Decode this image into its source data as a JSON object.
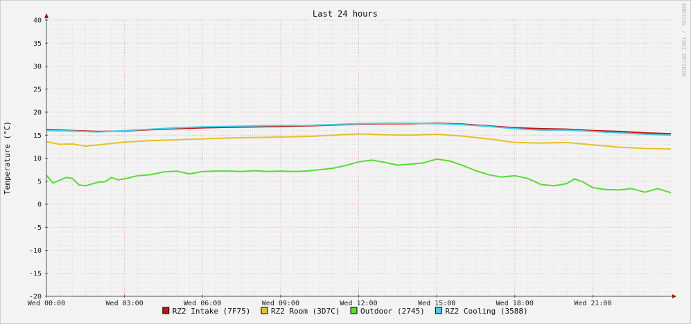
{
  "chart_data": {
    "type": "line",
    "title": "Last 24 hours",
    "ylabel": "Temperature (°C)",
    "watermark": "RRDTOOL / TOBI OETIKER",
    "ylim": [
      -20,
      40
    ],
    "yticks": [
      40,
      35,
      30,
      25,
      20,
      15,
      10,
      5,
      0,
      -5,
      -10,
      -15,
      -20
    ],
    "xlim": [
      0,
      24
    ],
    "xticks": [
      {
        "hour": 0,
        "label": "Wed 00:00"
      },
      {
        "hour": 3,
        "label": "Wed 03:00"
      },
      {
        "hour": 6,
        "label": "Wed 06:00"
      },
      {
        "hour": 9,
        "label": "Wed 09:00"
      },
      {
        "hour": 12,
        "label": "Wed 12:00"
      },
      {
        "hour": 15,
        "label": "Wed 15:00"
      },
      {
        "hour": 18,
        "label": "Wed 18:00"
      },
      {
        "hour": 21,
        "label": "Wed 21:00"
      }
    ],
    "grid": true,
    "legend_position": "bottom",
    "series": [
      {
        "name": "RZ2 Intake (7F75)",
        "color": "#cc1111",
        "x": [
          0,
          1,
          2,
          3,
          4,
          5,
          6,
          7,
          8,
          9,
          10,
          11,
          12,
          13,
          14,
          15,
          16,
          17,
          18,
          19,
          20,
          21,
          22,
          23,
          24
        ],
        "y": [
          16.2,
          16.0,
          15.8,
          15.9,
          16.2,
          16.4,
          16.6,
          16.7,
          16.8,
          16.9,
          17.0,
          17.2,
          17.4,
          17.5,
          17.5,
          17.6,
          17.4,
          17.0,
          16.6,
          16.4,
          16.3,
          16.0,
          15.8,
          15.5,
          15.3
        ]
      },
      {
        "name": "RZ2 Room (3D7C)",
        "color": "#e6c029",
        "x": [
          0,
          0.5,
          1,
          1.5,
          2,
          3,
          4,
          5,
          6,
          7,
          8,
          9,
          10,
          11,
          12,
          13,
          14,
          15,
          16,
          17,
          18,
          19,
          20,
          21,
          22,
          23,
          24
        ],
        "y": [
          13.6,
          13.0,
          13.1,
          12.6,
          12.9,
          13.5,
          13.8,
          14.0,
          14.2,
          14.4,
          14.5,
          14.6,
          14.7,
          15.0,
          15.3,
          15.1,
          15.0,
          15.2,
          14.8,
          14.2,
          13.4,
          13.3,
          13.4,
          12.9,
          12.4,
          12.1,
          12.0
        ]
      },
      {
        "name": "Outdoor (2745)",
        "color": "#55dd33",
        "x": [
          0,
          0.25,
          0.5,
          0.75,
          1,
          1.25,
          1.5,
          1.75,
          2,
          2.25,
          2.5,
          2.75,
          3,
          3.5,
          4,
          4.5,
          5,
          5.5,
          6,
          6.5,
          7,
          7.5,
          8,
          8.5,
          9,
          9.5,
          10,
          10.5,
          11,
          11.5,
          12,
          12.5,
          13,
          13.5,
          14,
          14.5,
          15,
          15.5,
          16,
          16.5,
          17,
          17.5,
          18,
          18.5,
          19,
          19.5,
          20,
          20.3,
          20.6,
          21,
          21.5,
          22,
          22.5,
          23,
          23.5,
          24
        ],
        "y": [
          6.3,
          4.6,
          5.2,
          5.8,
          5.6,
          4.2,
          4.0,
          4.4,
          4.8,
          4.9,
          5.8,
          5.3,
          5.5,
          6.2,
          6.4,
          7.0,
          7.2,
          6.6,
          7.1,
          7.2,
          7.2,
          7.1,
          7.3,
          7.1,
          7.2,
          7.1,
          7.2,
          7.5,
          7.8,
          8.4,
          9.2,
          9.6,
          9.1,
          8.5,
          8.7,
          9.0,
          9.8,
          9.4,
          8.4,
          7.3,
          6.4,
          5.9,
          6.2,
          5.6,
          4.3,
          4.0,
          4.5,
          5.5,
          4.9,
          3.6,
          3.2,
          3.1,
          3.4,
          2.6,
          3.4,
          2.5
        ]
      },
      {
        "name": "RZ2 Cooling (3588)",
        "color": "#44cce8",
        "x": [
          0,
          1,
          2,
          3,
          4,
          5,
          6,
          7,
          8,
          9,
          10,
          11,
          12,
          13,
          14,
          15,
          16,
          17,
          18,
          19,
          20,
          21,
          22,
          23,
          24
        ],
        "y": [
          16.0,
          15.9,
          15.7,
          16.0,
          16.3,
          16.6,
          16.8,
          16.9,
          17.0,
          17.1,
          17.1,
          17.3,
          17.5,
          17.6,
          17.6,
          17.5,
          17.3,
          16.9,
          16.4,
          16.1,
          16.1,
          15.8,
          15.5,
          15.2,
          15.0
        ]
      }
    ]
  }
}
